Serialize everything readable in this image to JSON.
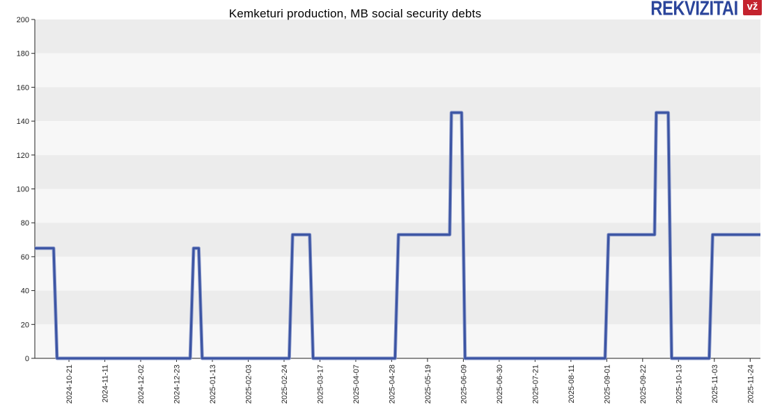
{
  "page": {
    "background": "#ffffff"
  },
  "header": {
    "logo": {
      "text": "REKVIZITAI",
      "badge": "vž",
      "text_color": "#2B459B",
      "badge_bg": "#C4232E",
      "badge_text_color": "#FFFFFF"
    }
  },
  "chart_data": {
    "type": "line",
    "title": "Kemketuri production, MB social security debts",
    "xlabel": "",
    "ylabel": "",
    "ylim": [
      0,
      200
    ],
    "y_ticks": [
      0,
      20,
      40,
      60,
      80,
      100,
      120,
      140,
      160,
      180,
      200
    ],
    "x_range": [
      "2024-10-01",
      "2025-11-30"
    ],
    "x_tick_labels": [
      "2024-10-21",
      "2024-11-11",
      "2024-12-02",
      "2024-12-23",
      "2025-01-13",
      "2025-02-03",
      "2025-02-24",
      "2025-03-17",
      "2025-04-07",
      "2025-04-28",
      "2025-05-19",
      "2025-06-09",
      "2025-06-30",
      "2025-07-21",
      "2025-08-11",
      "2025-09-01",
      "2025-09-22",
      "2025-10-13",
      "2025-11-03",
      "2025-11-24"
    ],
    "grid": "horizontal alternating bands",
    "legend": "none",
    "band_colors": [
      "#ECECEC",
      "#F7F7F7"
    ],
    "axis_color": "#222222",
    "tick_label_color": "#222222",
    "series": [
      {
        "name": "MB social security debts",
        "color": "#3B54A3",
        "glow_color": "#8E9CCB",
        "points": [
          [
            "2024-10-01",
            65
          ],
          [
            "2024-10-12",
            65
          ],
          [
            "2024-10-14",
            0
          ],
          [
            "2024-12-31",
            0
          ],
          [
            "2025-01-02",
            65
          ],
          [
            "2025-01-05",
            65
          ],
          [
            "2025-01-07",
            0
          ],
          [
            "2025-02-27",
            0
          ],
          [
            "2025-03-01",
            73
          ],
          [
            "2025-03-11",
            73
          ],
          [
            "2025-03-13",
            0
          ],
          [
            "2025-04-30",
            0
          ],
          [
            "2025-05-02",
            73
          ],
          [
            "2025-06-01",
            73
          ],
          [
            "2025-06-02",
            145
          ],
          [
            "2025-06-08",
            145
          ],
          [
            "2025-06-10",
            0
          ],
          [
            "2025-08-31",
            0
          ],
          [
            "2025-09-02",
            73
          ],
          [
            "2025-09-29",
            73
          ],
          [
            "2025-09-30",
            145
          ],
          [
            "2025-10-07",
            145
          ],
          [
            "2025-10-09",
            0
          ],
          [
            "2025-10-31",
            0
          ],
          [
            "2025-11-02",
            73
          ],
          [
            "2025-11-30",
            73
          ]
        ]
      }
    ]
  }
}
